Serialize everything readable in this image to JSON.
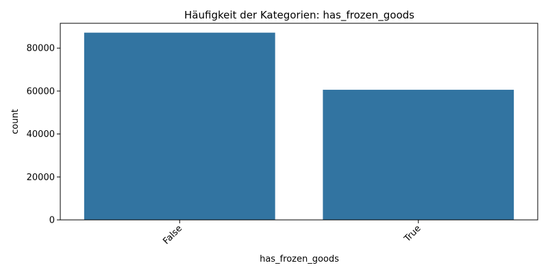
{
  "chart_data": {
    "type": "bar",
    "title": "Häufigkeit der Kategorien: has_frozen_goods",
    "xlabel": "has_frozen_goods",
    "ylabel": "count",
    "categories": [
      "False",
      "True"
    ],
    "values": [
      87200,
      60600
    ],
    "ylim": [
      0,
      91560
    ],
    "yticks": [
      0,
      20000,
      40000,
      60000,
      80000
    ],
    "ytick_labels": [
      "0",
      "20000",
      "40000",
      "60000",
      "80000"
    ],
    "xtick_rotation_deg": 45,
    "bar_color": "#3274a1",
    "grid": false,
    "legend": "none"
  }
}
